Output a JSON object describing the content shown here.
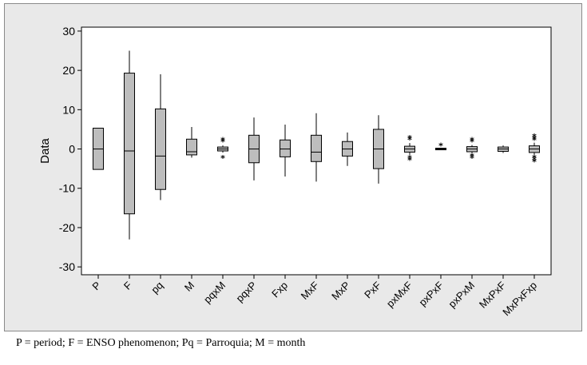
{
  "caption": "P = period; F = ENSO phenomenon; Pq = Parroquia; M = month",
  "chart_data": {
    "type": "box",
    "ylabel": "Data",
    "xlabel": "",
    "ylim": [
      -32,
      31
    ],
    "yticks": [
      -30,
      -20,
      -10,
      0,
      10,
      20,
      30
    ],
    "grid": false,
    "colors": {
      "box_fill": "#bdbdbd",
      "box_stroke": "#000000",
      "plot_bg": "#ffffff",
      "figure_bg": "#e9e9e9"
    },
    "categories": [
      "P",
      "F",
      "pq",
      "M",
      "pqxM",
      "pqxP",
      "Fxp",
      "MxF",
      "MxP",
      "PxF",
      "pxMxF",
      "pxPxF",
      "pxPxM",
      "MxPxF",
      "MxPxFxp"
    ],
    "boxes": [
      {
        "q1": -5.2,
        "median": 0,
        "q3": 5.3,
        "whisker_low": -5.2,
        "whisker_high": 5.3,
        "outliers": []
      },
      {
        "q1": -16.5,
        "median": -0.5,
        "q3": 19.3,
        "whisker_low": -23,
        "whisker_high": 25,
        "outliers": []
      },
      {
        "q1": -10.3,
        "median": -1.8,
        "q3": 10.2,
        "whisker_low": -13,
        "whisker_high": 19,
        "outliers": []
      },
      {
        "q1": -1.5,
        "median": -0.7,
        "q3": 2.5,
        "whisker_low": -2.2,
        "whisker_high": 5.6,
        "outliers": []
      },
      {
        "q1": -0.5,
        "median": 0,
        "q3": 0.5,
        "whisker_low": -0.9,
        "whisker_high": 0.9,
        "outliers": [
          -2.3,
          1.8,
          2.2
        ]
      },
      {
        "q1": -3.5,
        "median": 0,
        "q3": 3.5,
        "whisker_low": -8,
        "whisker_high": 8,
        "outliers": []
      },
      {
        "q1": -2.0,
        "median": 0,
        "q3": 2.3,
        "whisker_low": -7,
        "whisker_high": 6.2,
        "outliers": []
      },
      {
        "q1": -3.2,
        "median": -0.8,
        "q3": 3.5,
        "whisker_low": -8.3,
        "whisker_high": 9.1,
        "outliers": []
      },
      {
        "q1": -1.8,
        "median": 0,
        "q3": 1.9,
        "whisker_low": -4.3,
        "whisker_high": 4.2,
        "outliers": []
      },
      {
        "q1": -5,
        "median": 0,
        "q3": 5,
        "whisker_low": -8.8,
        "whisker_high": 8.6,
        "outliers": []
      },
      {
        "q1": -0.8,
        "median": 0,
        "q3": 0.7,
        "whisker_low": -1.5,
        "whisker_high": 1.5,
        "outliers": [
          -2.8,
          -2.3,
          2.3,
          2.8
        ]
      },
      {
        "q1": -0.2,
        "median": 0,
        "q3": 0.2,
        "whisker_low": -0.3,
        "whisker_high": 0.3,
        "outliers": [
          0.8
        ]
      },
      {
        "q1": -0.7,
        "median": 0,
        "q3": 0.6,
        "whisker_low": -1.0,
        "whisker_high": 1.0,
        "outliers": [
          -2.3,
          -1.8,
          1.8,
          2.2
        ]
      },
      {
        "q1": -0.6,
        "median": 0,
        "q3": 0.5,
        "whisker_low": -1.0,
        "whisker_high": 0.9,
        "outliers": []
      },
      {
        "q1": -0.9,
        "median": 0,
        "q3": 0.8,
        "whisker_low": -1.6,
        "whisker_high": 1.6,
        "outliers": [
          -3.2,
          -2.7,
          -2.2,
          2.2,
          2.7,
          3.2
        ]
      }
    ]
  }
}
